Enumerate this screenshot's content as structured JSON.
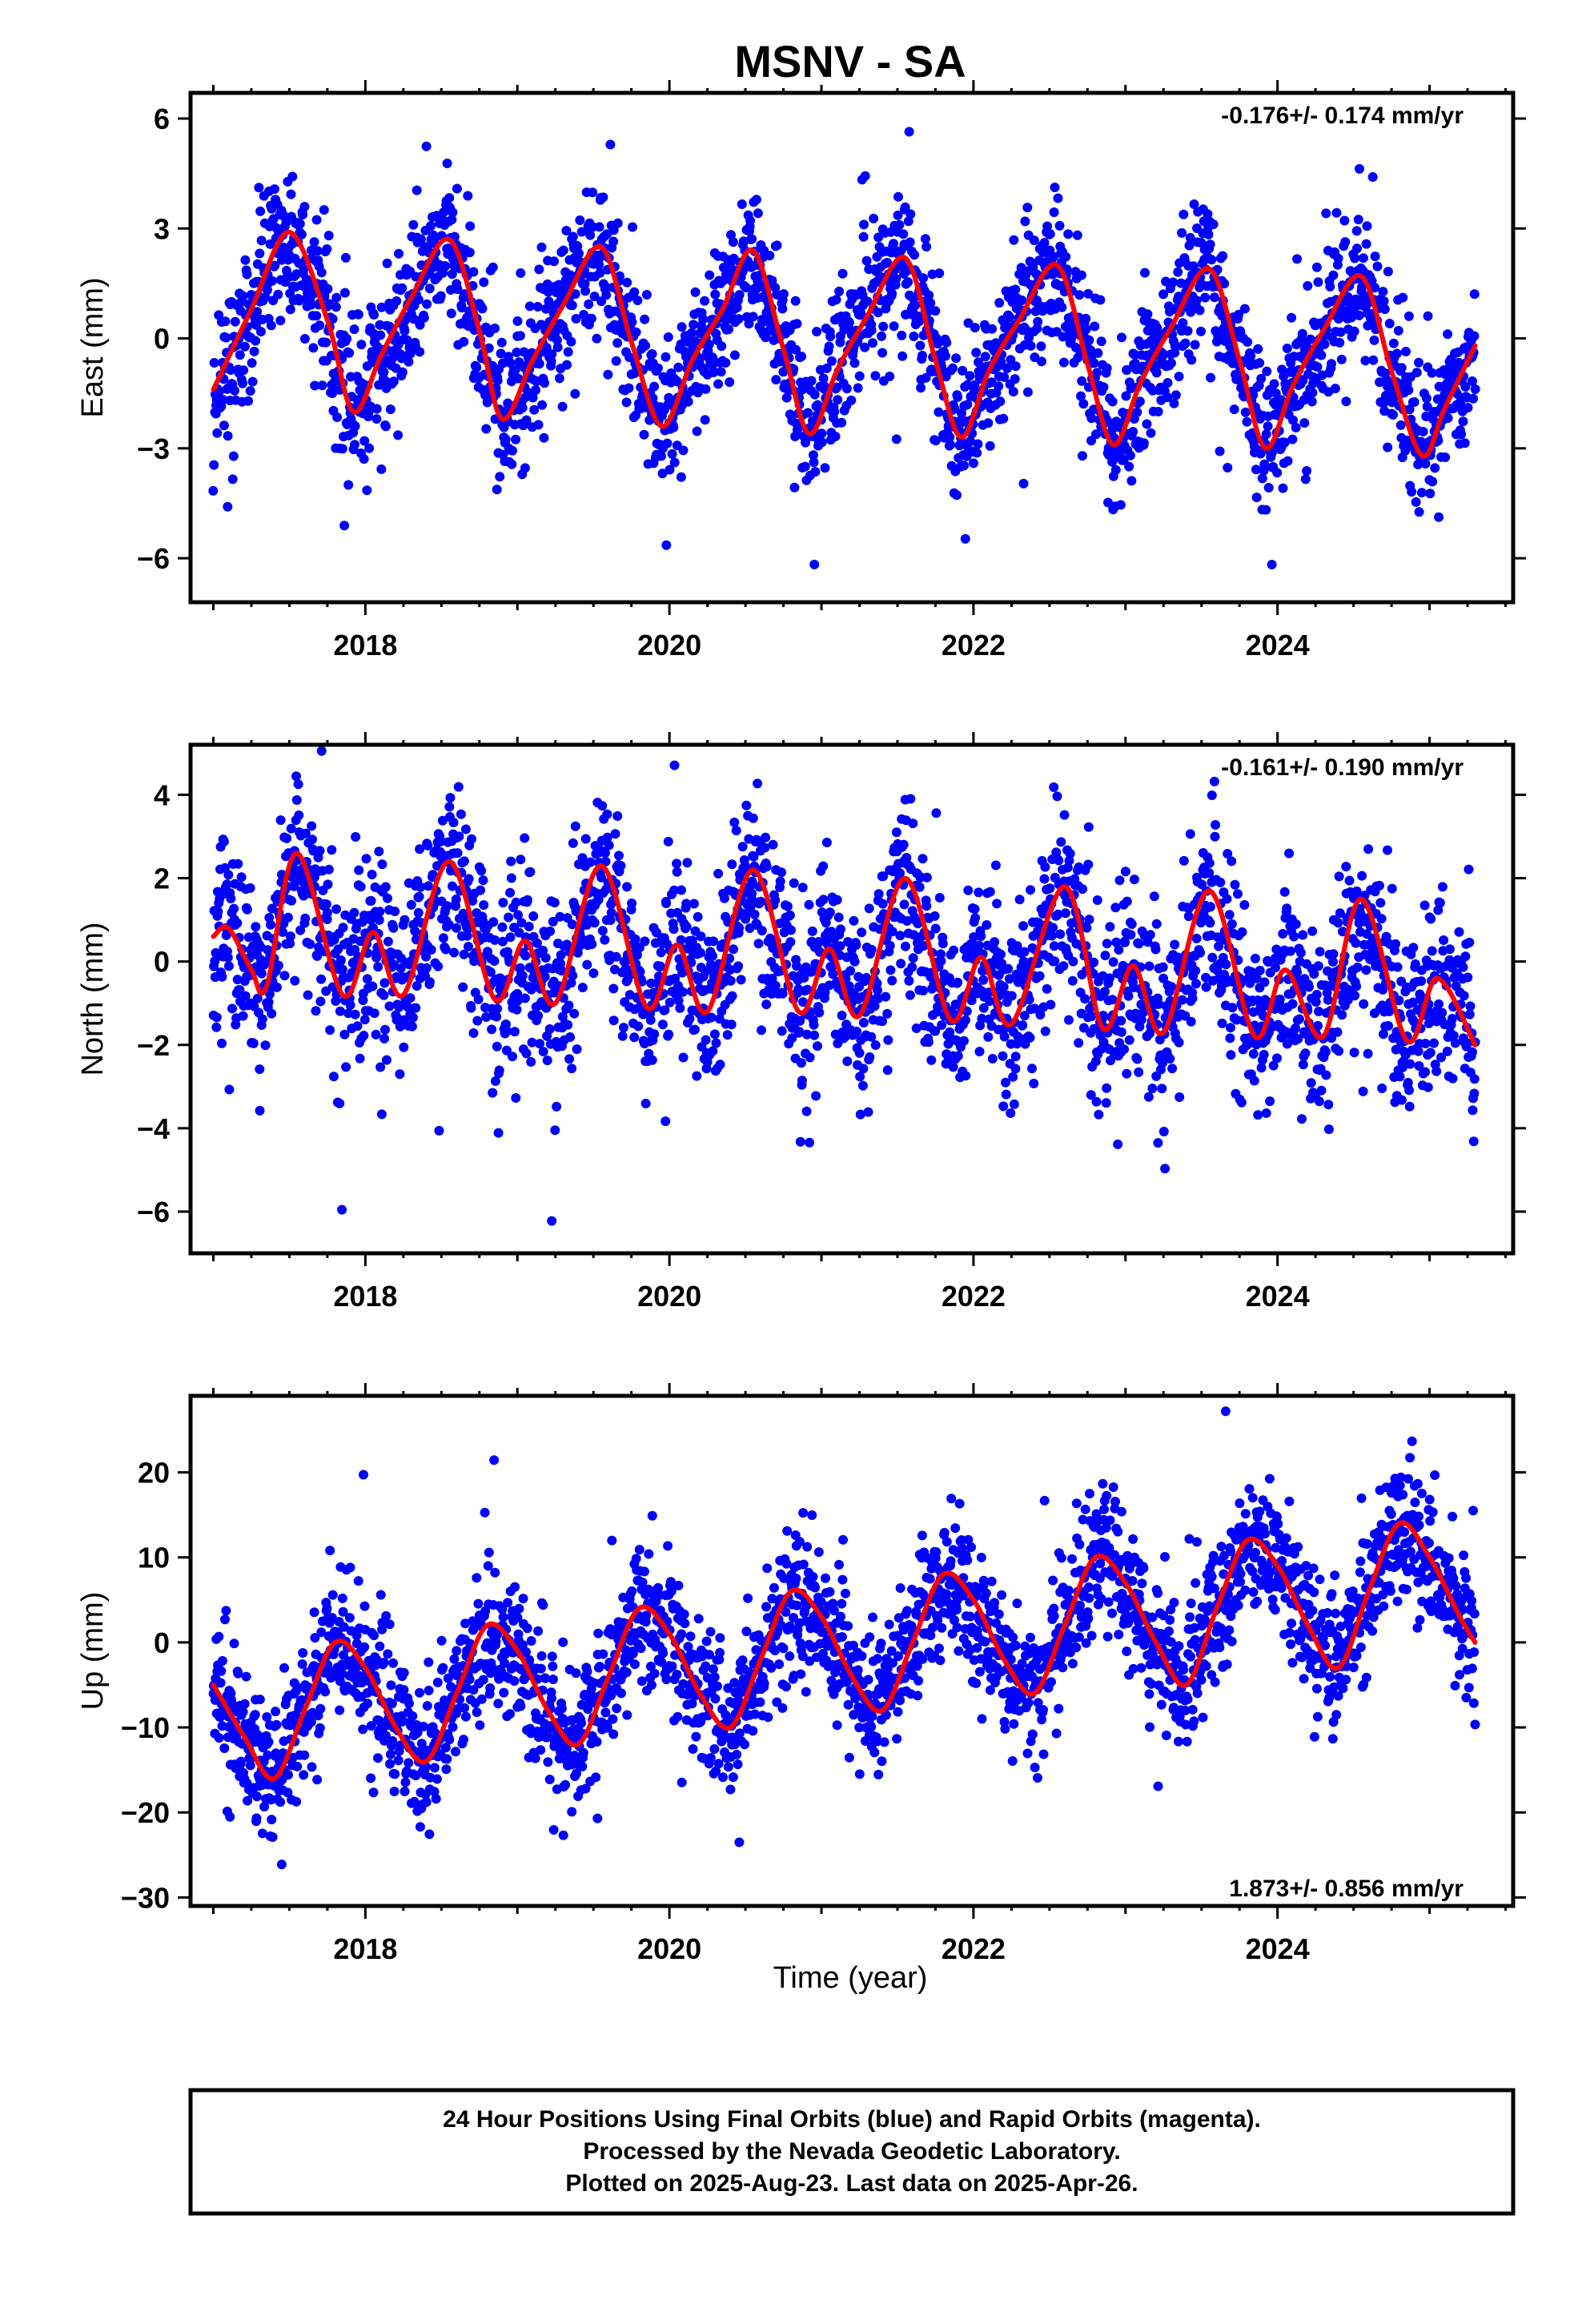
{
  "title": "MSNV - SA",
  "footer": {
    "lines": [
      "24 Hour Positions Using Final Orbits (blue) and Rapid Orbits (magenta).",
      "Processed by the Nevada Geodetic Laboratory.",
      "Plotted on 2025-Aug-23. Last data on 2025-Apr-26."
    ]
  },
  "colors": {
    "data_points": "#0000ff",
    "model_curve": "#ff0000",
    "axes": "#000000"
  },
  "chart_data": [
    {
      "type": "scatter",
      "ylabel": "East (mm)",
      "xlabel": "",
      "xlim": [
        2016.85,
        2025.55
      ],
      "ylim": [
        -7.2,
        6.7
      ],
      "xticks": [
        2018,
        2020,
        2022,
        2024
      ],
      "xtick_labels": [
        "2018",
        "2020",
        "2022",
        "2024"
      ],
      "yticks": [
        -6,
        -3,
        0,
        3,
        6
      ],
      "ytick_labels": [
        "−6",
        "−3",
        "0",
        "3",
        "6"
      ],
      "rate_label": "-0.176+/- 0.174 mm/yr",
      "rate_label_position": "top-right",
      "model_curve": {
        "x": [
          2017.0,
          2017.25,
          2017.5,
          2017.75,
          2017.92,
          2018.1,
          2018.3,
          2018.55,
          2018.75,
          2018.9,
          2019.1,
          2019.3,
          2019.55,
          2019.75,
          2019.95,
          2020.15,
          2020.35,
          2020.55,
          2020.75,
          2020.92,
          2021.1,
          2021.3,
          2021.55,
          2021.75,
          2021.92,
          2022.1,
          2022.3,
          2022.55,
          2022.75,
          2022.92,
          2023.1,
          2023.3,
          2023.55,
          2023.75,
          2023.92,
          2024.1,
          2024.3,
          2024.55,
          2024.75,
          2024.95,
          2025.1,
          2025.3
        ],
        "y": [
          -1.4,
          0.8,
          2.9,
          0.5,
          -2.0,
          -0.5,
          1.1,
          2.7,
          0.2,
          -2.2,
          -0.6,
          0.9,
          2.5,
          -0.1,
          -2.4,
          -0.6,
          0.8,
          2.4,
          -0.3,
          -2.6,
          -0.9,
          0.6,
          2.2,
          -0.6,
          -2.7,
          -0.9,
          0.5,
          2.0,
          -0.7,
          -2.9,
          -1.2,
          0.3,
          1.9,
          -0.6,
          -3.0,
          -1.3,
          0.2,
          1.7,
          -0.9,
          -3.2,
          -1.9,
          -0.2
        ]
      },
      "points_summary": {
        "note": "about 2900 daily positions scattered around the model curve",
        "x_range": [
          2017.0,
          2025.3
        ],
        "scatter_std_mm": 1.0
      }
    },
    {
      "type": "scatter",
      "ylabel": "North (mm)",
      "xlabel": "",
      "xlim": [
        2016.85,
        2025.55
      ],
      "ylim": [
        -7.0,
        5.2
      ],
      "xticks": [
        2018,
        2020,
        2022,
        2024
      ],
      "xtick_labels": [
        "2018",
        "2020",
        "2022",
        "2024"
      ],
      "yticks": [
        -6,
        -4,
        -2,
        0,
        2,
        4
      ],
      "ytick_labels": [
        "−6",
        "−4",
        "−2",
        "0",
        "2",
        "4"
      ],
      "rate_label": "-0.161+/- 0.190 mm/yr",
      "rate_label_position": "top-right",
      "model_curve": {
        "x": [
          2017.0,
          2017.1,
          2017.25,
          2017.35,
          2017.55,
          2017.85,
          2018.05,
          2018.25,
          2018.55,
          2018.85,
          2019.05,
          2019.25,
          2019.55,
          2019.85,
          2020.05,
          2020.25,
          2020.55,
          2020.85,
          2021.05,
          2021.25,
          2021.55,
          2021.85,
          2022.05,
          2022.25,
          2022.6,
          2022.85,
          2023.05,
          2023.25,
          2023.55,
          2023.85,
          2024.05,
          2024.3,
          2024.55,
          2024.85,
          2025.05,
          2025.3
        ],
        "y": [
          0.6,
          0.8,
          -0.2,
          -0.6,
          2.6,
          -0.8,
          0.7,
          -0.8,
          2.4,
          -0.9,
          0.5,
          -1.0,
          2.3,
          -1.1,
          0.4,
          -1.2,
          2.2,
          -1.2,
          0.3,
          -1.3,
          2.0,
          -1.4,
          0.1,
          -1.5,
          1.8,
          -1.6,
          -0.1,
          -1.7,
          1.7,
          -1.8,
          -0.2,
          -1.8,
          1.5,
          -1.9,
          -0.4,
          -2.0
        ]
      },
      "points_summary": {
        "note": "about 2900 daily positions scattered around the model curve",
        "x_range": [
          2017.0,
          2025.3
        ],
        "scatter_std_mm": 1.1
      }
    },
    {
      "type": "scatter",
      "ylabel": "Up (mm)",
      "xlabel": "Time (year)",
      "xlim": [
        2016.85,
        2025.55
      ],
      "ylim": [
        -31,
        29
      ],
      "xticks": [
        2018,
        2020,
        2022,
        2024
      ],
      "xtick_labels": [
        "2018",
        "2020",
        "2022",
        "2024"
      ],
      "yticks": [
        -30,
        -20,
        -10,
        0,
        10,
        20
      ],
      "ytick_labels": [
        "−30",
        "−20",
        "−10",
        "0",
        "10",
        "20"
      ],
      "rate_label": "1.873+/- 0.856 mm/yr",
      "rate_label_position": "bottom-right",
      "model_curve": {
        "x": [
          2017.0,
          2017.2,
          2017.4,
          2017.6,
          2017.8,
          2018.0,
          2018.2,
          2018.4,
          2018.6,
          2018.8,
          2019.0,
          2019.2,
          2019.4,
          2019.6,
          2019.8,
          2020.0,
          2020.2,
          2020.4,
          2020.6,
          2020.8,
          2021.0,
          2021.2,
          2021.4,
          2021.6,
          2021.8,
          2022.0,
          2022.2,
          2022.4,
          2022.6,
          2022.8,
          2023.0,
          2023.2,
          2023.4,
          2023.6,
          2023.8,
          2024.0,
          2024.2,
          2024.4,
          2024.6,
          2024.8,
          2025.0,
          2025.2,
          2025.3
        ],
        "y": [
          -5,
          -11,
          -16,
          -8,
          0,
          -3,
          -10,
          -14,
          -6,
          2,
          -1,
          -8,
          -12,
          -4,
          4,
          1,
          -6,
          -10,
          -2,
          6,
          3,
          -4,
          -8,
          0,
          8,
          5,
          -2,
          -6,
          2,
          10,
          7,
          0,
          -5,
          4,
          12,
          9,
          2,
          -3,
          6,
          14,
          10,
          3,
          0
        ]
      },
      "points_summary": {
        "note": "about 2900 daily positions scattered around the model curve",
        "x_range": [
          2017.0,
          2025.3
        ],
        "scatter_std_mm": 4.0
      }
    }
  ]
}
